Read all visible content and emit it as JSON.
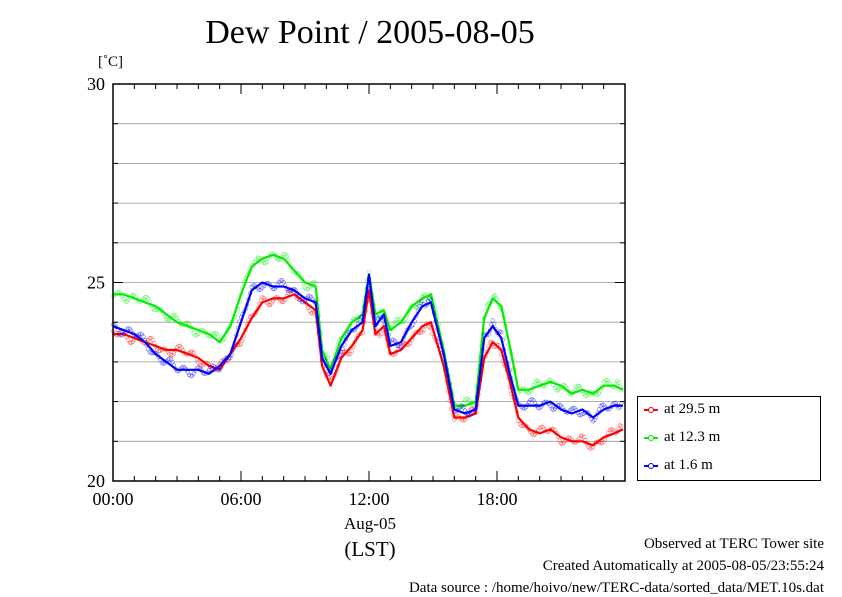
{
  "chart_data": {
    "type": "line",
    "title": "Dew Point / 2005-08-05",
    "ylabel": "[˚C]",
    "xlabel_date": "Aug-05",
    "xlabel_unit": "(LST)",
    "ylim": [
      20,
      30
    ],
    "xlim": [
      0,
      24
    ],
    "yticks": [
      "20",
      "25",
      "30"
    ],
    "xticks": [
      {
        "x": 0,
        "label": "00:00"
      },
      {
        "x": 6,
        "label": "06:00"
      },
      {
        "x": 12,
        "label": "12:00"
      },
      {
        "x": 18,
        "label": "18:00"
      }
    ],
    "grid": true,
    "legend_position": "right-bottom",
    "x": [
      0,
      0.5,
      1,
      1.5,
      2,
      2.5,
      3,
      3.5,
      4,
      4.5,
      5,
      5.5,
      6,
      6.5,
      7,
      7.5,
      8,
      8.5,
      9,
      9.5,
      9.8,
      10.2,
      10.7,
      11.2,
      11.7,
      12,
      12.3,
      12.7,
      13,
      13.5,
      14,
      14.5,
      14.9,
      15.5,
      16,
      16.5,
      17,
      17.4,
      17.8,
      18.2,
      18.6,
      19,
      19.5,
      20,
      20.5,
      21,
      21.5,
      22,
      22.5,
      23,
      23.5,
      23.9
    ],
    "series": [
      {
        "name": "at 29.5 m",
        "color": "#ff0000",
        "values": [
          23.7,
          23.7,
          23.6,
          23.5,
          23.4,
          23.3,
          23.3,
          23.2,
          23.1,
          22.9,
          22.8,
          23.2,
          23.6,
          24.1,
          24.5,
          24.6,
          24.6,
          24.7,
          24.5,
          24.3,
          22.9,
          22.4,
          23.1,
          23.4,
          23.8,
          24.8,
          23.7,
          23.9,
          23.2,
          23.3,
          23.6,
          23.9,
          24.0,
          22.9,
          21.6,
          21.6,
          21.7,
          23.1,
          23.5,
          23.3,
          22.5,
          21.6,
          21.3,
          21.2,
          21.3,
          21.1,
          21.0,
          21.0,
          20.9,
          21.1,
          21.2,
          21.3
        ]
      },
      {
        "name": "at 12.3 m",
        "color": "#00ee00",
        "values": [
          24.7,
          24.7,
          24.6,
          24.5,
          24.4,
          24.2,
          24.0,
          23.9,
          23.8,
          23.7,
          23.5,
          23.9,
          24.7,
          25.4,
          25.6,
          25.7,
          25.6,
          25.3,
          25.0,
          24.9,
          23.3,
          22.8,
          23.6,
          24.0,
          24.2,
          25.2,
          24.2,
          24.3,
          23.8,
          24.0,
          24.4,
          24.6,
          24.7,
          23.3,
          21.9,
          21.9,
          22.0,
          24.1,
          24.6,
          24.4,
          23.4,
          22.3,
          22.3,
          22.4,
          22.5,
          22.4,
          22.2,
          22.3,
          22.2,
          22.4,
          22.4,
          22.3
        ]
      },
      {
        "name": "at 1.6 m",
        "color": "#0000ff",
        "values": [
          23.9,
          23.8,
          23.7,
          23.5,
          23.2,
          23.0,
          22.8,
          22.8,
          22.8,
          22.7,
          22.9,
          23.2,
          24.0,
          24.8,
          25.0,
          24.9,
          24.9,
          24.8,
          24.6,
          24.5,
          23.1,
          22.7,
          23.4,
          23.8,
          24.0,
          25.2,
          23.9,
          24.2,
          23.4,
          23.5,
          24.0,
          24.4,
          24.5,
          23.2,
          21.8,
          21.7,
          21.8,
          23.6,
          23.9,
          23.6,
          22.7,
          21.9,
          21.9,
          21.9,
          22.0,
          21.8,
          21.7,
          21.8,
          21.6,
          21.8,
          21.9,
          21.9
        ]
      }
    ]
  },
  "footer": {
    "observed": "Observed at TERC Tower site",
    "created": "Created Automatically at 2005-08-05/23:55:24",
    "source": "Data source : /home/hoivo/new/TERC-data/sorted_data/MET.10s.dat"
  }
}
